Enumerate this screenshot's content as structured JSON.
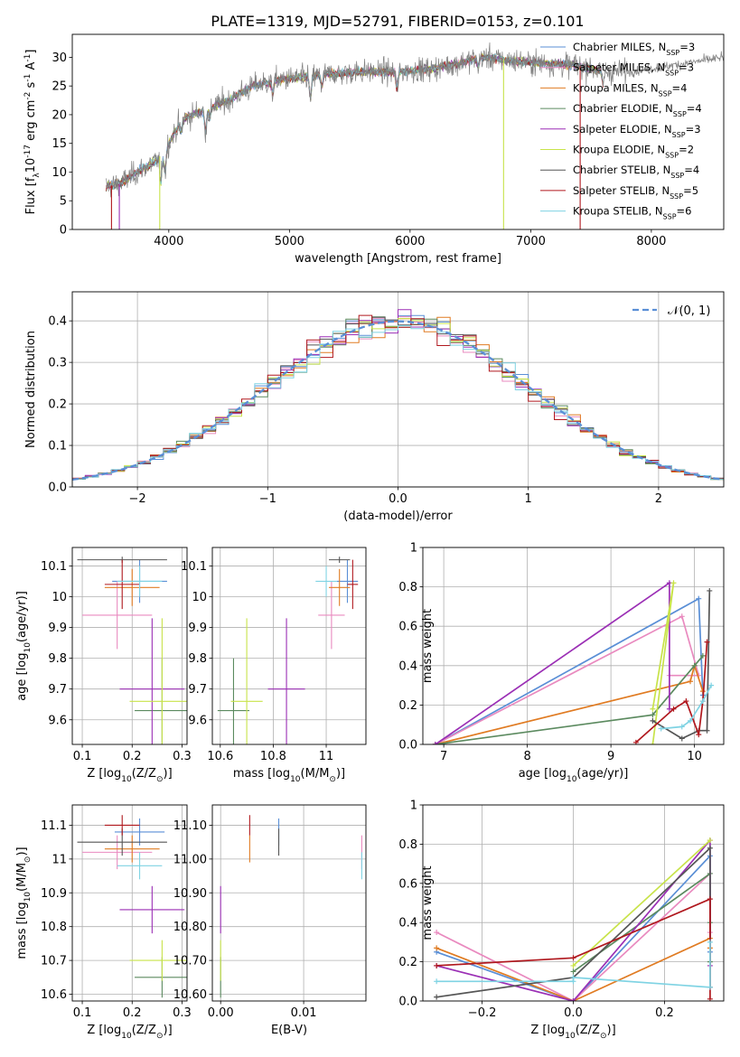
{
  "figure_title": "PLATE=1319, MJD=52791, FIBERID=0153, z=0.101",
  "series": [
    {
      "name": "Chabrier MILES, N$_{SSP}$=3",
      "label_main": "Chabrier MILES, N",
      "label_sub": "SSP",
      "label_end": "=3",
      "color": "#5a8fd6"
    },
    {
      "name": "Salpeter MILES, N$_{SSP}$=3",
      "label_main": "Salpeter MILES, N",
      "label_sub": "SSP",
      "label_end": "=3",
      "color": "#e98abf"
    },
    {
      "name": "Kroupa MILES, N$_{SSP}$=4",
      "label_main": "Kroupa MILES, N",
      "label_sub": "SSP",
      "label_end": "=4",
      "color": "#e07b22"
    },
    {
      "name": "Chabrier ELODIE, N$_{SSP}$=4",
      "label_main": "Chabrier ELODIE, N",
      "label_sub": "SSP",
      "label_end": "=4",
      "color": "#5b8a5f"
    },
    {
      "name": "Salpeter ELODIE, N$_{SSP}$=3",
      "label_main": "Salpeter ELODIE, N",
      "label_sub": "SSP",
      "label_end": "=3",
      "color": "#9b2fb5"
    },
    {
      "name": "Kroupa ELODIE, N$_{SSP}$=2",
      "label_main": "Kroupa ELODIE, N",
      "label_sub": "SSP",
      "label_end": "=2",
      "color": "#c8e34a"
    },
    {
      "name": "Chabrier STELIB, N$_{SSP}$=4",
      "label_main": "Chabrier STELIB, N",
      "label_sub": "SSP",
      "label_end": "=4",
      "color": "#555555"
    },
    {
      "name": "Salpeter STELIB, N$_{SSP}$=5",
      "label_main": "Salpeter STELIB, N",
      "label_sub": "SSP",
      "label_end": "=5",
      "color": "#b0181e"
    },
    {
      "name": "Kroupa STELIB, N$_{SSP}$=6",
      "label_main": "Kroupa STELIB, N",
      "label_sub": "SSP",
      "label_end": "=6",
      "color": "#7fd3e3"
    }
  ],
  "chart_data": [
    {
      "id": "spectrum",
      "type": "line",
      "xlabel": "wavelength [Angstrom, rest frame]",
      "ylabel": "Flux [f$_\\lambda$10$^{-17}$ erg cm$^{-2}$ s$^{-1}$ A$^{-1}$]",
      "xlim": [
        3200,
        8600
      ],
      "ylim": [
        0,
        34
      ],
      "xticks": [
        4000,
        5000,
        6000,
        7000,
        8000
      ],
      "yticks": [
        0,
        5,
        10,
        15,
        20,
        25,
        30
      ],
      "grid": false,
      "legend": "upper right",
      "data_color": "#808080",
      "continuum_knots": [
        [
          3480,
          7.5
        ],
        [
          3600,
          8
        ],
        [
          3700,
          9.5
        ],
        [
          3900,
          12
        ],
        [
          4000,
          15
        ],
        [
          4100,
          19
        ],
        [
          4300,
          21
        ],
        [
          4500,
          22.5
        ],
        [
          4700,
          25
        ],
        [
          4900,
          26
        ],
        [
          5100,
          26.5
        ],
        [
          5300,
          27
        ],
        [
          5600,
          27.5
        ],
        [
          5900,
          27.5
        ],
        [
          6200,
          28
        ],
        [
          6600,
          30
        ],
        [
          6800,
          29.5
        ],
        [
          7100,
          29
        ],
        [
          7400,
          28.5
        ],
        [
          7600,
          27.5
        ],
        [
          7800,
          27.5
        ],
        [
          8000,
          28
        ],
        [
          8300,
          29
        ],
        [
          8600,
          30
        ]
      ],
      "absorption_lines": [
        [
          3934,
          5
        ],
        [
          3969,
          4
        ],
        [
          4102,
          2
        ],
        [
          4304,
          4
        ],
        [
          4340,
          2
        ],
        [
          4861,
          2
        ],
        [
          5175,
          4
        ],
        [
          5270,
          2
        ],
        [
          5892,
          3
        ],
        [
          6563,
          1.5
        ],
        [
          7600,
          2
        ]
      ],
      "drop_lines": [
        {
          "x": 3525,
          "series": 7
        },
        {
          "x": 3590,
          "series": 4
        },
        {
          "x": 3925,
          "series": 5
        },
        {
          "x": 6775,
          "series": 5
        },
        {
          "x": 7410,
          "series": 7
        }
      ]
    },
    {
      "id": "residuals",
      "type": "histogram",
      "xlabel": "(data-model)/error",
      "ylabel": "Normed distribution",
      "xlim": [
        -2.5,
        2.5
      ],
      "ylim": [
        0,
        0.47
      ],
      "xticks": [
        -2,
        -1,
        0,
        1,
        2
      ],
      "yticks": [
        0.0,
        0.1,
        0.2,
        0.3,
        0.4
      ],
      "grid": true,
      "legend": "upper right",
      "reference_label": "$\\mathcal{N}(0,1)$",
      "reference_label_text": "𝒩(0, 1)",
      "bin_width": 0.1
    },
    {
      "id": "age_vs_Z",
      "type": "errorbar",
      "xlabel": "Z [log$_{10}$(Z/Z$_\\odot$)]",
      "ylabel": "age  [log$_{10}$(age/yr)]",
      "xlim": [
        0.08,
        0.31
      ],
      "ylim": [
        9.52,
        10.16
      ],
      "xticks": [
        0.1,
        0.2,
        0.3
      ],
      "yticks": [
        9.6,
        9.7,
        9.8,
        9.9,
        10.0,
        10.1
      ],
      "grid": true,
      "points": [
        {
          "series": 0,
          "x": 0.215,
          "y": 10.05,
          "xerr": 0.055,
          "yerr": 0.07
        },
        {
          "series": 1,
          "x": 0.17,
          "y": 9.94,
          "xerr": 0.07,
          "yerr": 0.11
        },
        {
          "series": 2,
          "x": 0.2,
          "y": 10.03,
          "xerr": 0.055,
          "yerr": 0.06
        },
        {
          "series": 3,
          "x": 0.26,
          "y": 9.63,
          "xerr": 0.055,
          "yerr": 0.17
        },
        {
          "series": 4,
          "x": 0.24,
          "y": 9.7,
          "xerr": 0.065,
          "yerr": 0.23
        },
        {
          "series": 5,
          "x": 0.26,
          "y": 9.66,
          "xerr": 0.065,
          "yerr": 0.27
        },
        {
          "series": 6,
          "x": 0.18,
          "y": 10.12,
          "xerr": 0.09,
          "yerr": 0.01
        },
        {
          "series": 7,
          "x": 0.18,
          "y": 10.04,
          "xerr": 0.035,
          "yerr": 0.08
        },
        {
          "series": 8,
          "x": 0.215,
          "y": 10.05,
          "xerr": 0.045,
          "yerr": 0.05
        }
      ]
    },
    {
      "id": "age_vs_mass",
      "type": "errorbar",
      "xlabel": "mass [log$_{10}$(M/M$_\\odot$)]",
      "ylabel": "",
      "xlim": [
        10.57,
        11.15
      ],
      "ylim": [
        9.52,
        10.16
      ],
      "xticks": [
        10.6,
        10.8,
        11.0
      ],
      "yticks": [
        9.6,
        9.7,
        9.8,
        9.9,
        10.0,
        10.1
      ],
      "grid": true,
      "points": [
        {
          "series": 0,
          "x": 11.08,
          "y": 10.05,
          "xerr": 0.04,
          "yerr": 0.07
        },
        {
          "series": 1,
          "x": 11.02,
          "y": 9.94,
          "xerr": 0.05,
          "yerr": 0.11
        },
        {
          "series": 2,
          "x": 11.05,
          "y": 10.03,
          "xerr": 0.04,
          "yerr": 0.06
        },
        {
          "series": 3,
          "x": 10.65,
          "y": 9.63,
          "xerr": 0.06,
          "yerr": 0.17
        },
        {
          "series": 4,
          "x": 10.85,
          "y": 9.7,
          "xerr": 0.07,
          "yerr": 0.23
        },
        {
          "series": 5,
          "x": 10.7,
          "y": 9.66,
          "xerr": 0.06,
          "yerr": 0.27
        },
        {
          "series": 6,
          "x": 11.05,
          "y": 10.12,
          "xerr": 0.04,
          "yerr": 0.01
        },
        {
          "series": 7,
          "x": 11.1,
          "y": 10.04,
          "xerr": 0.02,
          "yerr": 0.08
        },
        {
          "series": 8,
          "x": 11.0,
          "y": 10.05,
          "xerr": 0.04,
          "yerr": 0.05
        }
      ]
    },
    {
      "id": "weight_vs_age",
      "type": "line",
      "xlabel": "age  [log$_{10}$(age/yr)]",
      "ylabel": "mass weight",
      "xlim": [
        6.75,
        10.35
      ],
      "ylim": [
        0,
        1
      ],
      "xticks": [
        7,
        8,
        9,
        10
      ],
      "yticks": [
        0.0,
        0.2,
        0.4,
        0.6,
        0.8,
        1.0
      ],
      "grid": true,
      "lines": [
        {
          "series": 0,
          "x": [
            6.9,
            10.05,
            10.1
          ],
          "y": [
            0.0,
            0.74,
            0.25
          ]
        },
        {
          "series": 1,
          "x": [
            6.9,
            9.85,
            10.05,
            9.7
          ],
          "y": [
            0.0,
            0.65,
            0.35,
            0.35
          ]
        },
        {
          "series": 2,
          "x": [
            6.9,
            9.95,
            10.0,
            10.1
          ],
          "y": [
            0.0,
            0.32,
            0.4,
            0.27
          ]
        },
        {
          "series": 3,
          "x": [
            6.9,
            9.5,
            10.0,
            10.1
          ],
          "y": [
            0.0,
            0.15,
            0.4,
            0.45
          ]
        },
        {
          "series": 4,
          "x": [
            6.9,
            9.7,
            9.7
          ],
          "y": [
            0.0,
            0.82,
            0.18
          ]
        },
        {
          "series": 5,
          "x": [
            9.5,
            9.75,
            9.5
          ],
          "y": [
            0.18,
            0.82,
            0.0
          ]
        },
        {
          "series": 6,
          "x": [
            9.5,
            9.85,
            10.05,
            10.15,
            10.18
          ],
          "y": [
            0.12,
            0.03,
            0.07,
            0.07,
            0.78
          ]
        },
        {
          "series": 7,
          "x": [
            9.3,
            9.75,
            9.9,
            10.05,
            10.1,
            10.15
          ],
          "y": [
            0.01,
            0.18,
            0.22,
            0.05,
            0.22,
            0.52
          ]
        },
        {
          "series": 8,
          "x": [
            9.6,
            9.85,
            9.95,
            10.1,
            10.2
          ],
          "y": [
            0.08,
            0.09,
            0.12,
            0.22,
            0.3
          ]
        }
      ]
    },
    {
      "id": "mass_vs_Z",
      "type": "errorbar",
      "xlabel": "Z [log$_{10}$(Z/Z$_\\odot$)]",
      "ylabel": "mass [log$_{10}$(M/M$_\\odot$)]",
      "xlim": [
        0.08,
        0.31
      ],
      "ylim": [
        10.58,
        11.16
      ],
      "xticks": [
        0.1,
        0.2,
        0.3
      ],
      "yticks": [
        10.6,
        10.7,
        10.8,
        10.9,
        11.0,
        11.1
      ],
      "grid": true,
      "points": [
        {
          "series": 0,
          "x": 0.215,
          "y": 11.08,
          "xerr": 0.05,
          "yerr": 0.04
        },
        {
          "series": 1,
          "x": 0.17,
          "y": 11.02,
          "xerr": 0.07,
          "yerr": 0.05
        },
        {
          "series": 2,
          "x": 0.2,
          "y": 11.03,
          "xerr": 0.055,
          "yerr": 0.04
        },
        {
          "series": 3,
          "x": 0.26,
          "y": 10.65,
          "xerr": 0.055,
          "yerr": 0.06
        },
        {
          "series": 4,
          "x": 0.24,
          "y": 10.85,
          "xerr": 0.065,
          "yerr": 0.07
        },
        {
          "series": 5,
          "x": 0.26,
          "y": 10.7,
          "xerr": 0.065,
          "yerr": 0.06
        },
        {
          "series": 6,
          "x": 0.18,
          "y": 11.05,
          "xerr": 0.09,
          "yerr": 0.04
        },
        {
          "series": 7,
          "x": 0.18,
          "y": 11.1,
          "xerr": 0.035,
          "yerr": 0.03
        },
        {
          "series": 8,
          "x": 0.215,
          "y": 10.98,
          "xerr": 0.045,
          "yerr": 0.04
        }
      ]
    },
    {
      "id": "mass_vs_EBV",
      "type": "errorbar",
      "xlabel": "E(B-V)",
      "ylabel": "",
      "xlim": [
        -0.001,
        0.0175
      ],
      "ylim": [
        10.58,
        11.16
      ],
      "xticks": [
        0.0,
        0.01
      ],
      "yticks": [
        10.6,
        10.7,
        10.8,
        10.9,
        11.0,
        11.1
      ],
      "grid": true,
      "points": [
        {
          "series": 0,
          "x": 0.007,
          "y": 11.08,
          "xerr": 0,
          "yerr": 0.04
        },
        {
          "series": 1,
          "x": 0.017,
          "y": 11.02,
          "xerr": 0,
          "yerr": 0.05
        },
        {
          "series": 2,
          "x": 0.0035,
          "y": 11.03,
          "xerr": 0,
          "yerr": 0.04
        },
        {
          "series": 3,
          "x": 0.0,
          "y": 10.65,
          "xerr": 0,
          "yerr": 0.06
        },
        {
          "series": 4,
          "x": 0.0,
          "y": 10.85,
          "xerr": 0,
          "yerr": 0.07
        },
        {
          "series": 5,
          "x": 0.0,
          "y": 10.7,
          "xerr": 0,
          "yerr": 0.06
        },
        {
          "series": 6,
          "x": 0.007,
          "y": 11.05,
          "xerr": 0,
          "yerr": 0.04
        },
        {
          "series": 7,
          "x": 0.0035,
          "y": 11.1,
          "xerr": 0,
          "yerr": 0.03
        },
        {
          "series": 8,
          "x": 0.017,
          "y": 10.98,
          "xerr": 0,
          "yerr": 0.04
        }
      ]
    },
    {
      "id": "weight_vs_Z",
      "type": "line",
      "xlabel": "Z [log$_{10}$(Z/Z$_\\odot$)]",
      "ylabel": "mass weight",
      "xlim": [
        -0.33,
        0.33
      ],
      "ylim": [
        0,
        1
      ],
      "xticks": [
        -0.2,
        0.0,
        0.2
      ],
      "yticks": [
        0.0,
        0.2,
        0.4,
        0.6,
        0.8,
        1.0
      ],
      "grid": true,
      "lines": [
        {
          "series": 0,
          "x": [
            -0.3,
            0.0,
            0.3,
            0.3
          ],
          "y": [
            0.25,
            0.0,
            0.74,
            0.25
          ]
        },
        {
          "series": 1,
          "x": [
            -0.3,
            0.0,
            0.3,
            0.3
          ],
          "y": [
            0.35,
            0.0,
            0.65,
            0.35
          ]
        },
        {
          "series": 2,
          "x": [
            -0.3,
            0.0,
            0.3,
            0.3
          ],
          "y": [
            0.27,
            0.0,
            0.32,
            0.27
          ]
        },
        {
          "series": 3,
          "x": [
            0.0,
            0.3,
            0.3,
            0.3
          ],
          "y": [
            0.15,
            0.65,
            0.4,
            0.2
          ]
        },
        {
          "series": 4,
          "x": [
            -0.3,
            0.0,
            0.3,
            0.3
          ],
          "y": [
            0.18,
            0.0,
            0.82,
            0.18
          ]
        },
        {
          "series": 5,
          "x": [
            0.0,
            0.3
          ],
          "y": [
            0.18,
            0.82
          ]
        },
        {
          "series": 6,
          "x": [
            -0.3,
            0.0,
            0.3,
            0.3
          ],
          "y": [
            0.02,
            0.12,
            0.78,
            0.07
          ]
        },
        {
          "series": 7,
          "x": [
            -0.3,
            0.0,
            0.3,
            0.3
          ],
          "y": [
            0.18,
            0.22,
            0.52,
            0.01
          ]
        },
        {
          "series": 8,
          "x": [
            -0.3,
            0.0,
            0.0,
            0.3,
            0.3
          ],
          "y": [
            0.1,
            0.1,
            0.12,
            0.07,
            0.3
          ]
        }
      ]
    }
  ]
}
